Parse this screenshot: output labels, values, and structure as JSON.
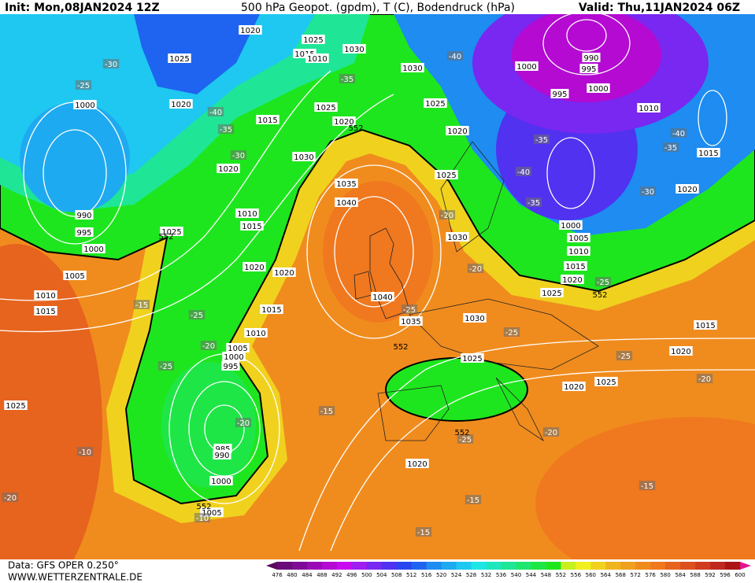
{
  "header": {
    "init": "Init: Mon,08JAN2024 12Z",
    "title": "500 hPa Geopot. (gpdm), T (C), Bodendruck (hPa)",
    "valid": "Valid: Thu,11JAN2024 06Z"
  },
  "footer": {
    "data": "Data: GFS OPER 0.250°",
    "site": "WWW.WETTERZENTRALE.DE"
  },
  "legend": {
    "levels": [
      476,
      480,
      484,
      488,
      492,
      496,
      500,
      504,
      508,
      512,
      516,
      520,
      524,
      528,
      532,
      536,
      540,
      544,
      548,
      552,
      556,
      560,
      564,
      568,
      572,
      576,
      580,
      584,
      588,
      592,
      596,
      600
    ],
    "colors": [
      "#5a0a5a",
      "#6a0a7a",
      "#7e0a96",
      "#9a0ab4",
      "#b40ad2",
      "#c80af0",
      "#a01ef0",
      "#7828f0",
      "#5032f0",
      "#2846f0",
      "#1e64f0",
      "#1e8cf0",
      "#1eaaf0",
      "#1ec8f0",
      "#1ee6e6",
      "#1ee6be",
      "#1ee696",
      "#1ee66e",
      "#1ee646",
      "#1ee61e",
      "#c8f01e",
      "#f0f01e",
      "#f0d21e",
      "#f0b41e",
      "#f0a01e",
      "#f08c1e",
      "#f0781e",
      "#e6641e",
      "#dc501e",
      "#d23c1e",
      "#be281e",
      "#aa1414",
      "#e6148c"
    ]
  },
  "map": {
    "pressure_labels": [
      1020,
      1025,
      1025,
      1030,
      1015,
      1010,
      1030,
      1000,
      990,
      995,
      1000,
      995,
      1025,
      1020,
      1000,
      1025,
      1015,
      1020,
      1020,
      1010,
      1015,
      1030,
      1020,
      1025,
      1035,
      1040,
      1020,
      990,
      995,
      1000,
      1025,
      1010,
      1015,
      1030,
      1000,
      1005,
      1010,
      1015,
      1020,
      1005,
      1020,
      1020,
      1010,
      1015,
      1015,
      1040,
      1035,
      1030,
      1025,
      1010,
      1005,
      1000,
      995,
      1025,
      1020,
      1020,
      1025,
      1015,
      1025,
      985,
      990,
      1000,
      1005,
      1020
    ],
    "temperature_labels": [
      -30,
      -25,
      -40,
      -35,
      -30,
      -40,
      -35,
      -35,
      -40,
      -35,
      -40,
      -35,
      -30,
      -25,
      -20,
      -20,
      -25,
      -25,
      -25,
      -20,
      -15,
      -25,
      -20,
      -25,
      -20,
      -15,
      -10,
      -20,
      -25,
      -15,
      -15,
      -15,
      -10,
      -20
    ],
    "height_labels": [
      552,
      552,
      552,
      552,
      552,
      552
    ]
  }
}
